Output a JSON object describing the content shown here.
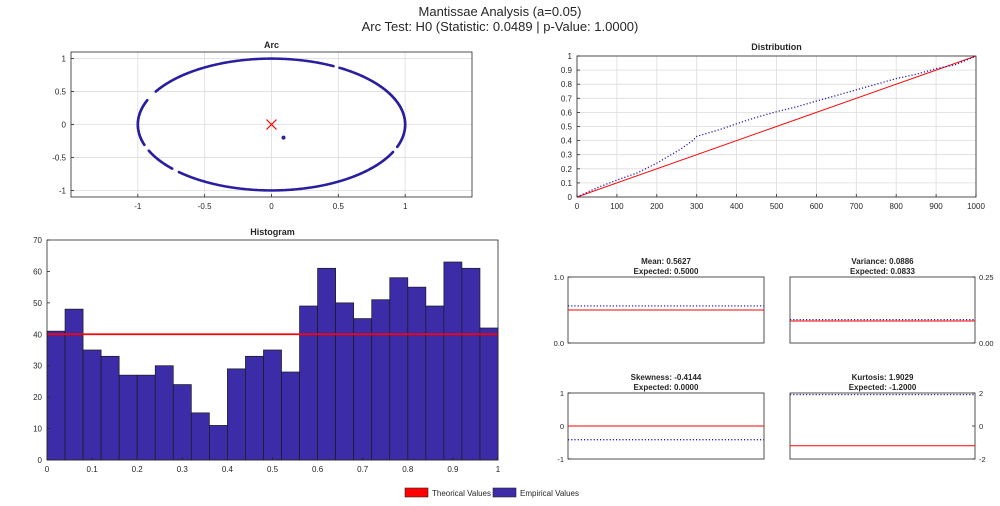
{
  "figure": {
    "title_line1": "Mantissae Analysis (a=0.05)",
    "title_line2": "Arc Test: H0 (Statistic: 0.0489 | p-Value: 1.0000)"
  },
  "colors": {
    "empirical": "#3c2ca8",
    "empirical_dots": "#2a1fa0",
    "theoretical": "#ff0000",
    "axis": "#262626",
    "grid": "#dcdcdc"
  },
  "legend": {
    "theoretical_label": "Theorical Values",
    "empirical_label": "Empirical Values"
  },
  "chart_data": [
    {
      "id": "arc",
      "type": "scatter",
      "title": "Arc",
      "xlim": [
        -1.5,
        1.5
      ],
      "ylim": [
        -1.1,
        1.1
      ],
      "xticks": [
        -1,
        -0.5,
        0,
        0.5,
        1
      ],
      "xticklabels": [
        "-1",
        "-0.5",
        "0",
        "0.5",
        "1"
      ],
      "yticks": [
        1,
        0.5,
        0,
        -0.5,
        -1
      ],
      "yticklabels": [
        "1",
        "0.5",
        "0",
        "-0.5",
        "-1"
      ],
      "grid": true,
      "points_on_unit_circle": true,
      "circle_gaps_deg": [
        [
          150,
          158
        ],
        [
          198,
          203
        ],
        [
          222,
          226
        ],
        [
          336,
          340
        ],
        [
          60,
          62
        ]
      ],
      "theoretical_center": {
        "x": 0,
        "y": 0
      },
      "empirical_center": {
        "x": 0.09,
        "y": -0.2
      }
    },
    {
      "id": "distribution",
      "type": "line",
      "title": "Distribution",
      "xlim": [
        0,
        1000
      ],
      "ylim": [
        0,
        1
      ],
      "xticks": [
        0,
        100,
        200,
        300,
        400,
        500,
        600,
        700,
        800,
        900,
        1000
      ],
      "xticklabels": [
        "0",
        "100",
        "200",
        "300",
        "400",
        "500",
        "600",
        "700",
        "800",
        "900",
        "1000"
      ],
      "yticks": [
        1,
        0.9,
        0.8,
        0.7,
        0.6,
        0.5,
        0.4,
        0.3,
        0.2,
        0.1,
        0
      ],
      "yticklabels": [
        "1",
        "0.9",
        "0.8",
        "0.7",
        "0.6",
        "0.5",
        "0.4",
        "0.3",
        "0.2",
        "0.1",
        "0"
      ],
      "grid": true,
      "series": [
        {
          "role": "theoretical",
          "x": [
            0,
            1000
          ],
          "y": [
            0,
            1
          ]
        },
        {
          "role": "empirical",
          "x": [
            0,
            50,
            100,
            150,
            200,
            230,
            260,
            280,
            290,
            300,
            330,
            360,
            400,
            450,
            500,
            550,
            600,
            650,
            700,
            750,
            800,
            850,
            900,
            950,
            1000
          ],
          "y": [
            0,
            0.065,
            0.12,
            0.17,
            0.24,
            0.29,
            0.34,
            0.38,
            0.4,
            0.43,
            0.455,
            0.48,
            0.52,
            0.565,
            0.605,
            0.64,
            0.68,
            0.72,
            0.76,
            0.8,
            0.84,
            0.87,
            0.91,
            0.94,
            1.0
          ]
        }
      ]
    },
    {
      "id": "histogram",
      "type": "bar",
      "title": "Histogram",
      "xlim": [
        0,
        1
      ],
      "ylim": [
        0,
        70
      ],
      "xticks": [
        0,
        0.1,
        0.2,
        0.3,
        0.4,
        0.5,
        0.6,
        0.7,
        0.8,
        0.9,
        1
      ],
      "xticklabels": [
        "0",
        "0.1",
        "0.2",
        "0.3",
        "0.4",
        "0.5",
        "0.6",
        "0.7",
        "0.8",
        "0.9",
        "1"
      ],
      "yticks": [
        70,
        60,
        50,
        40,
        30,
        20,
        10,
        0
      ],
      "yticklabels": [
        "70",
        "60",
        "50",
        "40",
        "30",
        "20",
        "10",
        "0"
      ],
      "bin_width": 0.04,
      "values": [
        41,
        48,
        35,
        33,
        27,
        27,
        30,
        24,
        15,
        11,
        29,
        33,
        35,
        28,
        49,
        61,
        50,
        45,
        51,
        58,
        55,
        49,
        63,
        61,
        42
      ],
      "theoretical_value": 40
    },
    {
      "id": "mean",
      "type": "line",
      "title": "Mean: 0.5627",
      "subtitle": "Expected: 0.5000",
      "ylim": [
        0,
        1
      ],
      "yticks": [
        1,
        0
      ],
      "yticklabels": [
        "1.0",
        "0.0"
      ],
      "axis_side": "left",
      "empirical": 0.5627,
      "theoretical": 0.5
    },
    {
      "id": "variance",
      "type": "line",
      "title": "Variance: 0.0886",
      "subtitle": "Expected: 0.0833",
      "ylim": [
        0,
        0.25
      ],
      "yticks": [
        0.25,
        0
      ],
      "yticklabels": [
        "0.25",
        "0.00"
      ],
      "axis_side": "right",
      "empirical": 0.0886,
      "theoretical": 0.0833
    },
    {
      "id": "skewness",
      "type": "line",
      "title": "Skewness: -0.4144",
      "subtitle": "Expected: 0.0000",
      "ylim": [
        -1,
        1
      ],
      "yticks": [
        1,
        0,
        -1
      ],
      "yticklabels": [
        "1",
        "0",
        "-1"
      ],
      "axis_side": "left",
      "empirical": -0.4144,
      "theoretical": 0
    },
    {
      "id": "kurtosis",
      "type": "line",
      "title": "Kurtosis: 1.9029",
      "subtitle": "Expected: -1.2000",
      "ylim": [
        -2,
        2
      ],
      "yticks": [
        2,
        0,
        -2
      ],
      "yticklabels": [
        "2",
        "0",
        "-2"
      ],
      "axis_side": "right",
      "empirical": 1.9029,
      "theoretical": -1.2
    }
  ]
}
